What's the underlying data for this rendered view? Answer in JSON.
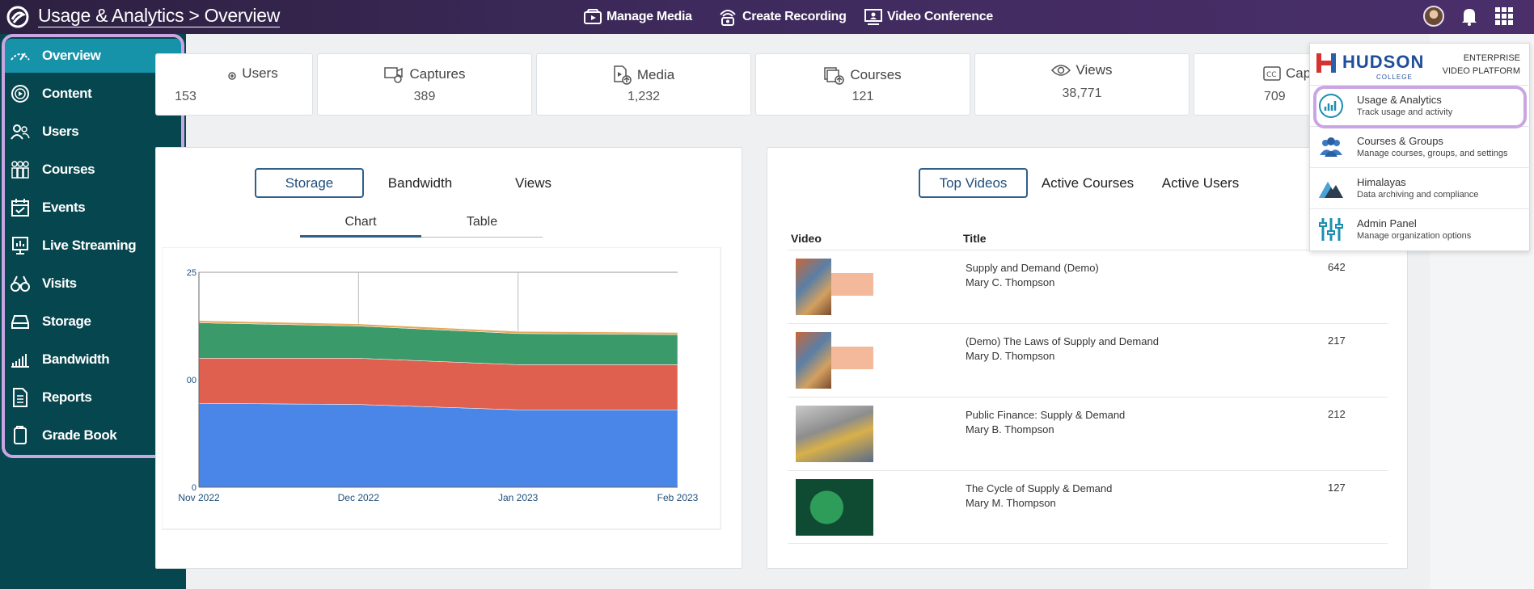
{
  "header": {
    "title": "Usage & Analytics > Overview",
    "nav": [
      {
        "label": "Manage Media",
        "icon": "media-icon"
      },
      {
        "label": "Create Recording",
        "icon": "recording-icon"
      },
      {
        "label": "Video Conference",
        "icon": "conference-icon"
      }
    ]
  },
  "sidebar": {
    "items": [
      {
        "label": "Overview",
        "icon": "overview-icon"
      },
      {
        "label": "Content",
        "icon": "content-icon"
      },
      {
        "label": "Users",
        "icon": "users-icon"
      },
      {
        "label": "Courses",
        "icon": "courses-icon"
      },
      {
        "label": "Events",
        "icon": "events-icon"
      },
      {
        "label": "Live Streaming",
        "icon": "live-streaming-icon"
      },
      {
        "label": "Visits",
        "icon": "visits-icon"
      },
      {
        "label": "Storage",
        "icon": "storage-icon"
      },
      {
        "label": "Bandwidth",
        "icon": "bandwidth-icon"
      },
      {
        "label": "Reports",
        "icon": "reports-icon"
      },
      {
        "label": "Grade Book",
        "icon": "grade-book-icon"
      }
    ]
  },
  "stats": [
    {
      "label": "Users",
      "value": "153"
    },
    {
      "label": "Captures",
      "value": "389"
    },
    {
      "label": "Media",
      "value": "1,232"
    },
    {
      "label": "Courses",
      "value": "121"
    },
    {
      "label": "Views",
      "value": "38,771"
    },
    {
      "label": "Cap",
      "value": "709"
    }
  ],
  "usage_panel": {
    "tabs": [
      "Storage",
      "Bandwidth",
      "Views"
    ],
    "subtabs": [
      "Chart",
      "Table"
    ]
  },
  "chart_data": {
    "type": "area",
    "x": [
      "Nov 2022",
      "Dec 2022",
      "Jan 2023",
      "Feb 2023"
    ],
    "series": [
      {
        "color": "#4a86e8",
        "values": [
          78,
          77,
          72,
          72
        ]
      },
      {
        "color": "#e06050",
        "values": [
          42,
          43,
          42,
          42
        ]
      },
      {
        "color": "#3a9a6a",
        "values": [
          33,
          30,
          29,
          28
        ]
      },
      {
        "color": "#e8a65a",
        "values": [
          2,
          2,
          2,
          2
        ]
      }
    ],
    "yticks": [
      "0",
      "00",
      "25"
    ],
    "ylim": [
      0,
      200
    ]
  },
  "top_panel": {
    "tabs": [
      "Top Videos",
      "Active Courses",
      "Active Users"
    ],
    "columns": [
      "Video",
      "Title"
    ],
    "rows": [
      {
        "title": "Supply and Demand (Demo)",
        "author": "Mary C. Thompson",
        "count": "642"
      },
      {
        "title": "(Demo) The Laws of Supply and Demand",
        "author": "Mary D. Thompson",
        "count": "217"
      },
      {
        "title": "Public Finance: Supply & Demand",
        "author": "Mary B. Thompson",
        "count": "212"
      },
      {
        "title": "The Cycle of Supply & Demand",
        "author": "Mary M. Thompson",
        "count": "127"
      }
    ]
  },
  "app_menu": {
    "brand": "HUDSON",
    "brand_sub": "COLLEGE",
    "platform": "ENTERPRISE VIDEO PLATFORM",
    "items": [
      {
        "title": "Usage & Analytics",
        "subtitle": "Track usage and activity"
      },
      {
        "title": "Courses & Groups",
        "subtitle": "Manage courses, groups, and settings"
      },
      {
        "title": "Himalayas",
        "subtitle": "Data archiving and compliance"
      },
      {
        "title": "Admin Panel",
        "subtitle": "Manage organization options"
      }
    ]
  }
}
